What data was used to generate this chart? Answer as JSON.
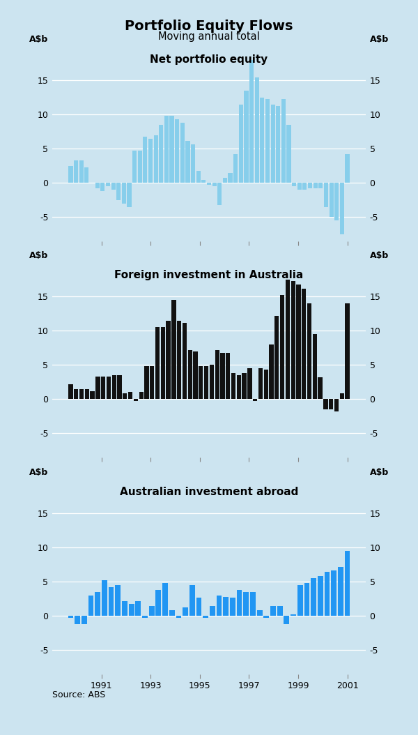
{
  "title": "Portfolio Equity Flows",
  "subtitle": "Moving annual total",
  "source": "Source: ABS",
  "bg_color": "#cce4f0",
  "panel_bg": "#cce4f0",
  "light_blue_bar": "#87ceeb",
  "black_bar": "#111111",
  "blue_bar": "#2196F3",
  "yticks": [
    -5,
    0,
    5,
    10,
    15
  ],
  "ylim": [
    -8.5,
    20.0
  ],
  "xlim": [
    1989.0,
    2001.75
  ],
  "xtick_positions": [
    1991,
    1993,
    1995,
    1997,
    1999,
    2001
  ],
  "panel_titles": [
    "Net portfolio equity",
    "Foreign investment in Australia",
    "Australian investment abroad"
  ],
  "net_equity": [
    2.5,
    3.3,
    3.3,
    2.3,
    0.0,
    -0.8,
    -1.2,
    -0.5,
    -1.0,
    -2.5,
    -3.0,
    -3.5,
    4.7,
    4.7,
    6.8,
    6.5,
    7.0,
    8.5,
    9.8,
    9.8,
    9.3,
    8.8,
    6.2,
    5.7,
    1.8,
    0.5,
    -0.3,
    -0.5,
    -3.2,
    0.8,
    1.5,
    4.2,
    11.5,
    13.5,
    18.0,
    15.5,
    12.5,
    12.3,
    11.5,
    11.3,
    12.3,
    8.5,
    -0.5,
    -1.0,
    -1.0,
    -0.8,
    -0.8,
    -0.8,
    -3.5,
    -5.0,
    -5.5,
    -7.5,
    4.2
  ],
  "foreign_inv": [
    2.2,
    1.5,
    1.5,
    1.5,
    1.2,
    3.3,
    3.3,
    3.3,
    3.5,
    3.5,
    0.8,
    1.0,
    -0.3,
    1.0,
    4.8,
    4.8,
    10.5,
    10.5,
    11.5,
    14.5,
    11.5,
    11.2,
    7.2,
    7.0,
    4.8,
    4.8,
    5.0,
    7.2,
    6.8,
    6.8,
    3.8,
    3.5,
    3.8,
    4.5,
    -0.3,
    4.5,
    4.3,
    8.0,
    12.2,
    15.2,
    17.5,
    17.3,
    16.8,
    16.2,
    14.0,
    9.5,
    3.2,
    -1.5,
    -1.5,
    -1.8,
    0.8,
    14.0
  ],
  "aus_inv": [
    -0.3,
    -1.2,
    -1.2,
    3.0,
    3.5,
    5.2,
    4.2,
    4.5,
    2.2,
    1.8,
    2.2,
    -0.3,
    1.5,
    3.8,
    4.8,
    0.8,
    -0.3,
    1.2,
    4.5,
    2.7,
    -0.3,
    1.5,
    3.0,
    2.8,
    2.7,
    3.8,
    3.5,
    3.5,
    0.8,
    -0.3,
    1.5,
    1.5,
    -1.2,
    0.2,
    4.5,
    4.8,
    5.5,
    5.8,
    6.5,
    6.7,
    7.2,
    9.5
  ]
}
